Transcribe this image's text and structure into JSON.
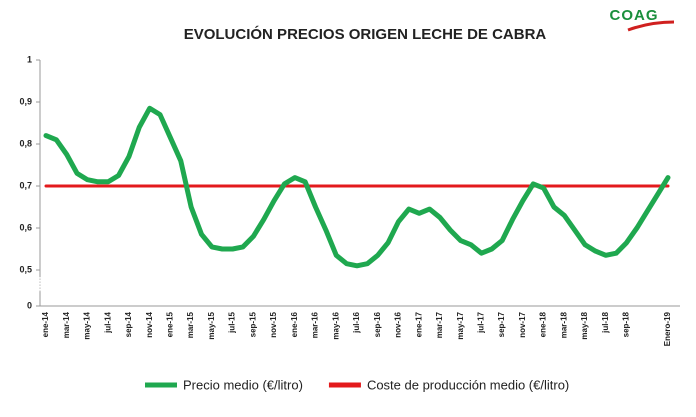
{
  "logo": "COAG",
  "chart_data": {
    "type": "line",
    "title": "EVOLUCIÓN PRECIOS ORIGEN LECHE DE CABRA",
    "categories": [
      "ene-14",
      null,
      "mar-14",
      null,
      "may-14",
      null,
      "jul-14",
      null,
      "sep-14",
      null,
      "nov-14",
      null,
      "ene-15",
      null,
      "mar-15",
      null,
      "may-15",
      null,
      "jul-15",
      null,
      "sep-15",
      null,
      "nov-15",
      null,
      "ene-16",
      null,
      "mar-16",
      null,
      "may-16",
      null,
      "jul-16",
      null,
      "sep-16",
      null,
      "nov-16",
      null,
      "ene-17",
      null,
      "mar-17",
      null,
      "may-17",
      null,
      "jul-17",
      null,
      "sep-17",
      null,
      "nov-17",
      null,
      "ene-18",
      null,
      "mar-18",
      null,
      "may-18",
      null,
      "jul-18",
      null,
      "sep-18",
      null,
      null,
      null,
      "Enero-19"
    ],
    "series": [
      {
        "name": "Precio medio (€/litro)",
        "color": "#1fa84f",
        "values": [
          0.82,
          0.81,
          0.775,
          0.73,
          0.715,
          0.71,
          0.71,
          0.725,
          0.77,
          0.84,
          0.885,
          0.87,
          0.815,
          0.76,
          0.65,
          0.585,
          0.555,
          0.55,
          0.55,
          0.555,
          0.58,
          0.62,
          0.665,
          0.705,
          0.72,
          0.71,
          0.65,
          0.595,
          0.535,
          0.515,
          0.51,
          0.515,
          0.535,
          0.565,
          0.615,
          0.645,
          0.635,
          0.645,
          0.625,
          0.595,
          0.57,
          0.56,
          0.54,
          0.55,
          0.57,
          0.62,
          0.665,
          0.705,
          0.695,
          0.65,
          0.63,
          0.595,
          0.56,
          0.545,
          0.535,
          0.54,
          0.565,
          0.6,
          0.64,
          0.68,
          0.72
        ]
      },
      {
        "name": "Coste de producción medio  (€/litro)",
        "color": "#e31a1c",
        "values": [
          0.7,
          0.7,
          0.7,
          0.7,
          0.7,
          0.7,
          0.7,
          0.7,
          0.7,
          0.7,
          0.7,
          0.7,
          0.7,
          0.7,
          0.7,
          0.7,
          0.7,
          0.7,
          0.7,
          0.7,
          0.7,
          0.7,
          0.7,
          0.7,
          0.7,
          0.7,
          0.7,
          0.7,
          0.7,
          0.7,
          0.7,
          0.7,
          0.7,
          0.7,
          0.7,
          0.7,
          0.7,
          0.7,
          0.7,
          0.7,
          0.7,
          0.7,
          0.7,
          0.7,
          0.7,
          0.7,
          0.7,
          0.7,
          0.7,
          0.7,
          0.7,
          0.7,
          0.7,
          0.7,
          0.7,
          0.7,
          0.7,
          0.7,
          0.7,
          0.7,
          0.7
        ]
      }
    ],
    "ylim": [
      0,
      1
    ],
    "axis_break": [
      0,
      0.5
    ],
    "yticks": [
      0,
      {
        "value": 0.5,
        "label": "0,5"
      },
      {
        "value": 0.6,
        "label": "0,6"
      },
      {
        "value": 0.7,
        "label": "0,7"
      },
      {
        "value": 0.8,
        "label": "0,8"
      },
      {
        "value": 0.9,
        "label": "0,9"
      },
      1
    ],
    "legend": "bottom",
    "grid": false
  }
}
